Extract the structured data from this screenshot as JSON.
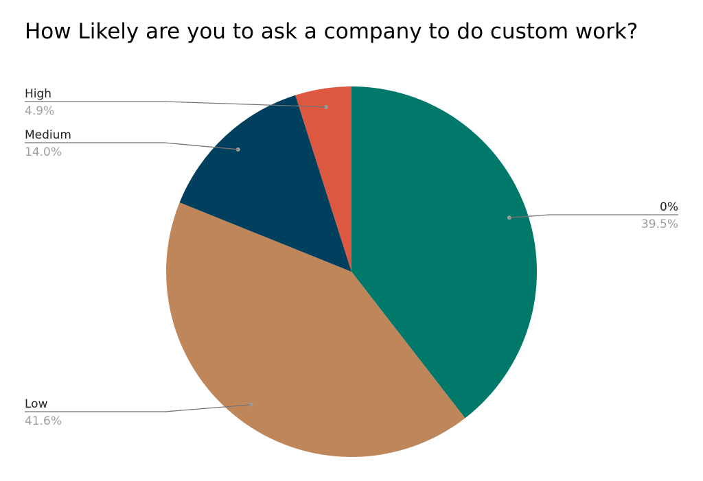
{
  "chart_data": {
    "type": "pie",
    "title": "How Likely are you to ask a company to do custom work?",
    "slices": [
      {
        "label": "0%",
        "value": 39.5,
        "pct_label": "39.5%",
        "color": "#00796b"
      },
      {
        "label": "Low",
        "value": 41.6,
        "pct_label": "41.6%",
        "color": "#bf8659"
      },
      {
        "label": "Medium",
        "value": 14.0,
        "pct_label": "14.0%",
        "color": "#00405e"
      },
      {
        "label": "High",
        "value": 4.9,
        "pct_label": "4.9%",
        "color": "#dc5841"
      }
    ],
    "legend": "none",
    "label_style": "callouts"
  }
}
